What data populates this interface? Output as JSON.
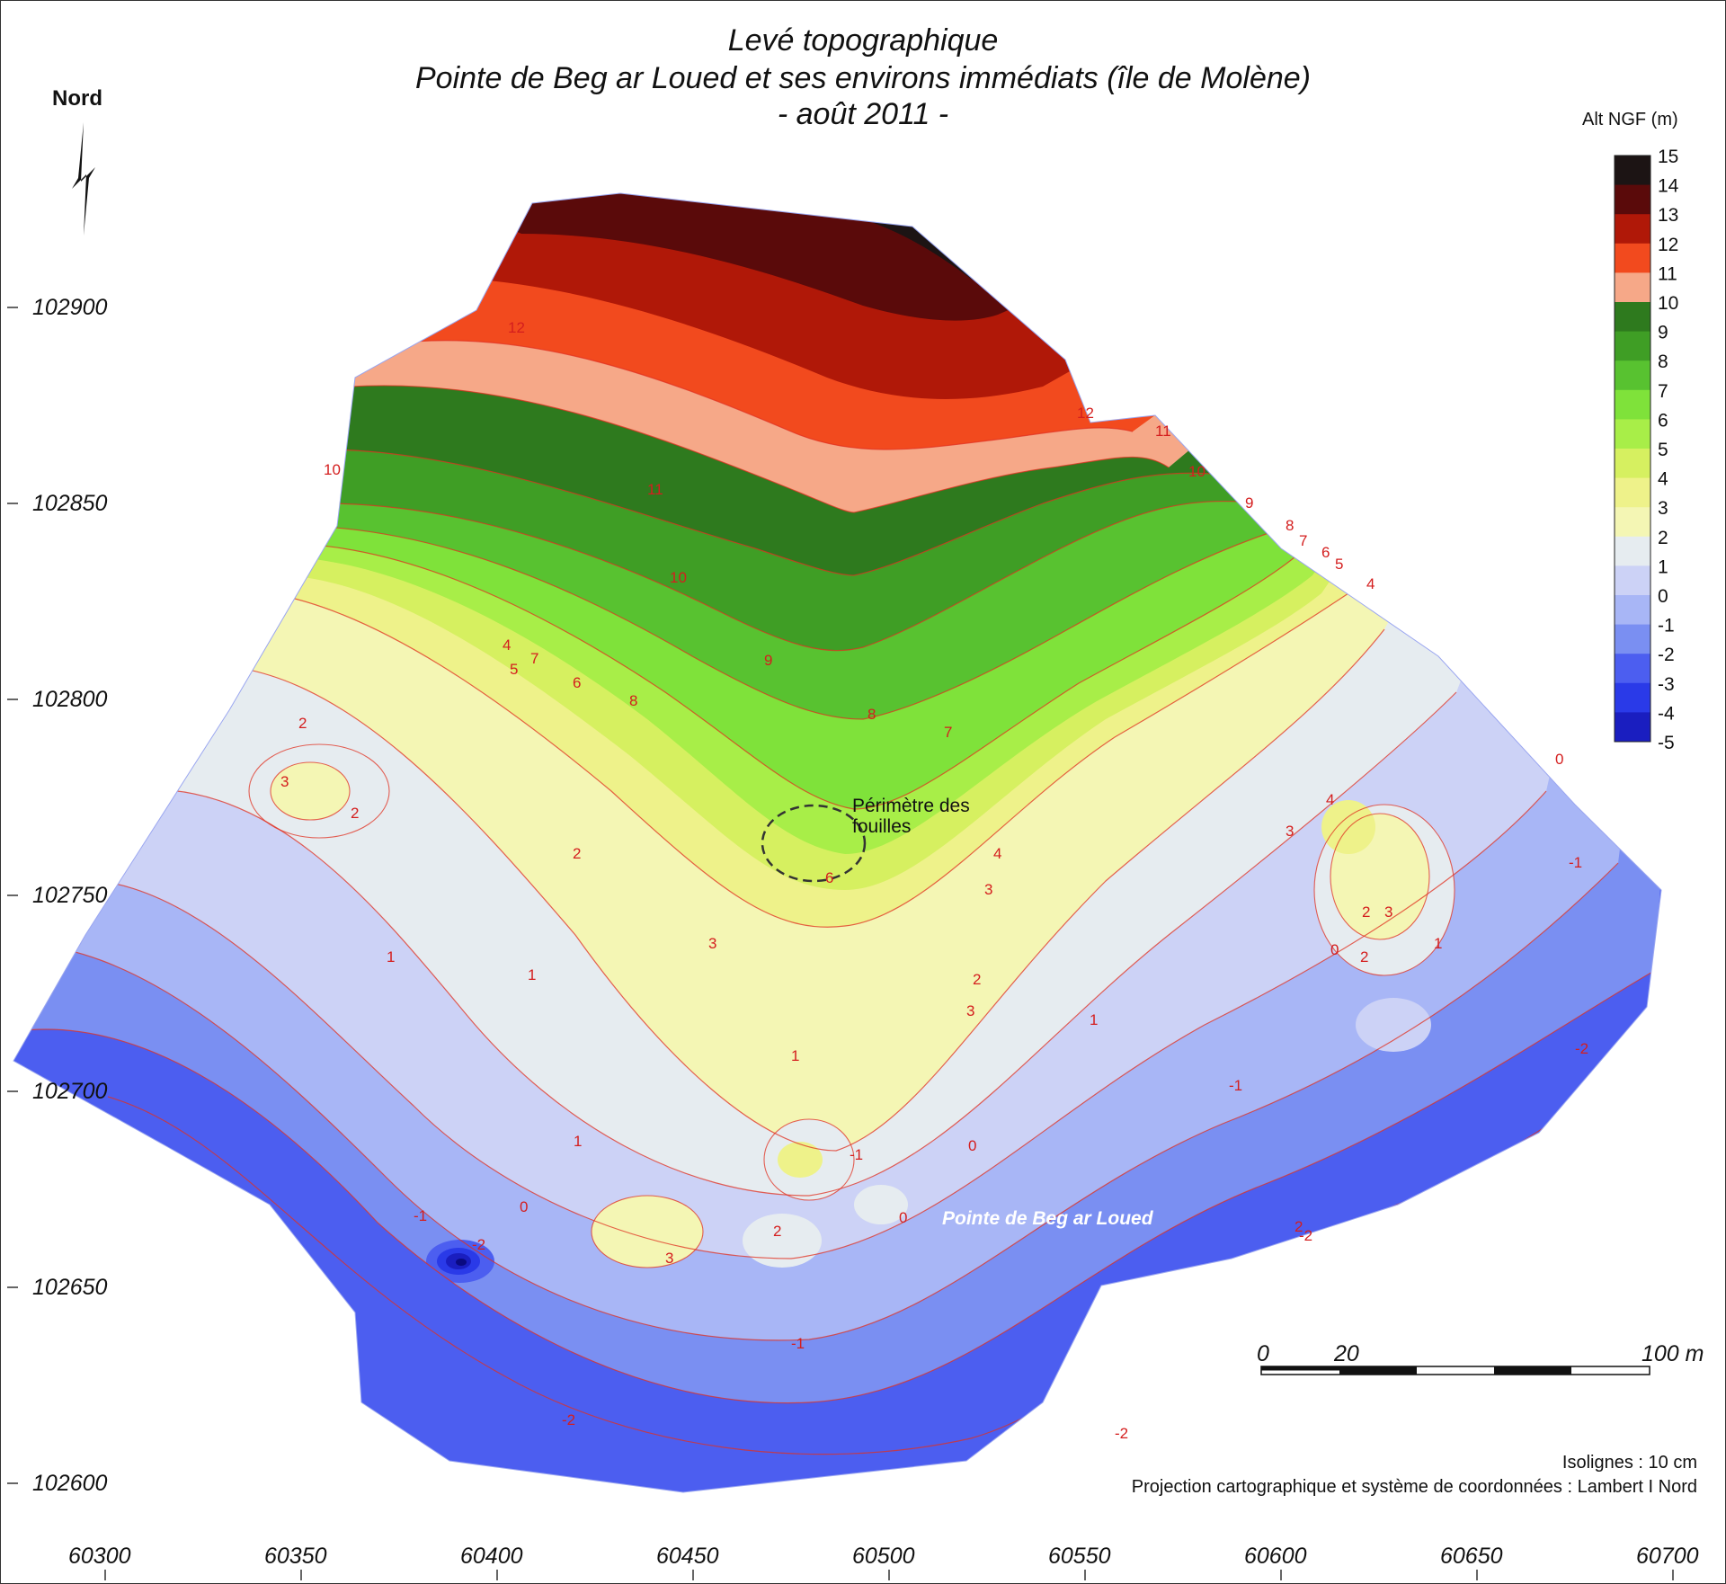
{
  "title": {
    "line1": "Levé topographique",
    "line2": "Pointe de Beg ar Loued et ses environs immédiats (île de Molène)",
    "line3": "- août 2011 -"
  },
  "north": {
    "label": "Nord",
    "icon": "north-arrow-icon"
  },
  "legend": {
    "title": "Alt NGF (m)",
    "levels": [
      15,
      14,
      13,
      12,
      11,
      10,
      9,
      8,
      7,
      6,
      5,
      4,
      3,
      2,
      1,
      0,
      -1,
      -2,
      -3,
      -4,
      -5
    ],
    "colors": {
      "15": "#1c1414",
      "14": "#5a0a0a",
      "13": "#b01808",
      "12": "#f24a1e",
      "11": "#f6a888",
      "10": "#2e7a1e",
      "9": "#3f9e25",
      "8": "#58c230",
      "7": "#7fe23a",
      "6": "#a8ee48",
      "5": "#d6f060",
      "4": "#eef28a",
      "3": "#f4f6b4",
      "2": "#e6ecf0",
      "1": "#ccd2f6",
      "0": "#a8b6f6",
      "-1": "#7a8ff2",
      "-2": "#4c5ef0",
      "-3": "#2a3ae8",
      "-4": "#1a1ec0",
      "-5": "#0a0a80"
    }
  },
  "axes": {
    "x_ticks": [
      "60300",
      "60350",
      "60400",
      "60450",
      "60500",
      "60550",
      "60600",
      "60650",
      "60700"
    ],
    "y_ticks": [
      "102900",
      "102850",
      "102800",
      "102750",
      "102700",
      "102650",
      "102600"
    ]
  },
  "annotations": {
    "perimeter": "Périmètre des fouilles",
    "perimeter_line1": "Périmètre des",
    "perimeter_line2": "fouilles",
    "place": "Pointe de Beg ar Loued"
  },
  "contour_labels": [
    "12",
    "12",
    "11",
    "11",
    "10",
    "10",
    "10",
    "9",
    "9",
    "8",
    "8",
    "8",
    "7",
    "7",
    "7",
    "6",
    "6",
    "6",
    "5",
    "5",
    "4",
    "4",
    "4",
    "4",
    "3",
    "3",
    "3",
    "3",
    "3",
    "3",
    "3",
    "2",
    "2",
    "2",
    "2",
    "2",
    "2",
    "2",
    "2",
    "1",
    "1",
    "1",
    "1",
    "1",
    "1",
    "0",
    "0",
    "0",
    "0",
    "0",
    "-1",
    "-1",
    "-1",
    "-1",
    "-1",
    "-2",
    "-2",
    "-2",
    "-2",
    "-2"
  ],
  "scale_bar": {
    "labels": [
      "0",
      "20",
      "100 m"
    ]
  },
  "notes": {
    "isolines": "Isolignes : 10 cm",
    "projection": "Projection cartographique et système de coordonnées : Lambert I Nord"
  }
}
